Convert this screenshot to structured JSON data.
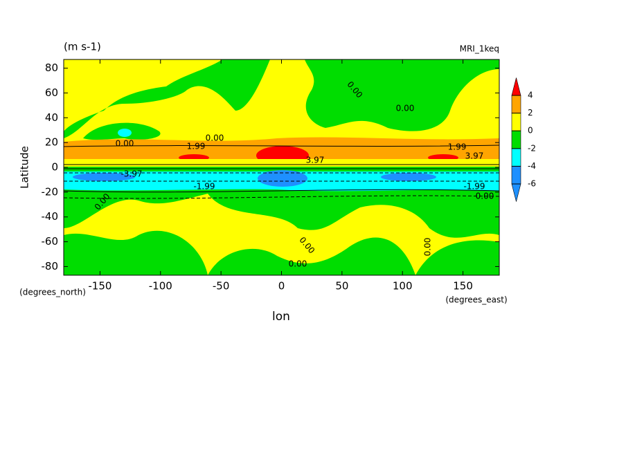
{
  "chart_data": {
    "type": "contour",
    "title": "(m s-1)",
    "subtitle": "MRI_1keq",
    "x_label": "lon",
    "y_label": "Latitude",
    "x_units": "(degrees_east)",
    "y_units": "(degrees_north)",
    "xlim": [
      -180,
      180
    ],
    "ylim": [
      -87,
      87
    ],
    "xticks": [
      -150,
      -100,
      -50,
      0,
      50,
      100,
      150
    ],
    "yticks": [
      -80,
      -60,
      -40,
      -20,
      0,
      20,
      40,
      60,
      80
    ],
    "levels": [
      -6,
      -4,
      -2,
      0,
      2,
      4
    ],
    "colors": [
      "#1e90ff",
      "#1e90ff",
      "#00ffff",
      "#00dd00",
      "#ffff00",
      "#ffa500",
      "#ff0000"
    ],
    "contour_labels": [
      {
        "value": 0,
        "label": "0.00"
      },
      {
        "value": 0,
        "label": "0.00"
      },
      {
        "value": 0,
        "label": "0.00"
      },
      {
        "value": 0,
        "label": "0.00"
      },
      {
        "value": 0,
        "label": "0.00"
      },
      {
        "value": 0,
        "label": "0.00"
      },
      {
        "value": 0,
        "label": "0.00"
      },
      {
        "value": 0,
        "label": "0.00"
      },
      {
        "value": 0,
        "label": "0.00"
      },
      {
        "value": 1.99,
        "label": "1.99"
      },
      {
        "value": 1.99,
        "label": "1.99"
      },
      {
        "value": -1.99,
        "label": "-1.99"
      },
      {
        "value": -1.99,
        "label": "-1.99"
      },
      {
        "value": 3.97,
        "label": "3.97"
      },
      {
        "value": 3.97,
        "label": "3.97"
      },
      {
        "value": -3.97,
        "label": "-3.97"
      }
    ]
  }
}
